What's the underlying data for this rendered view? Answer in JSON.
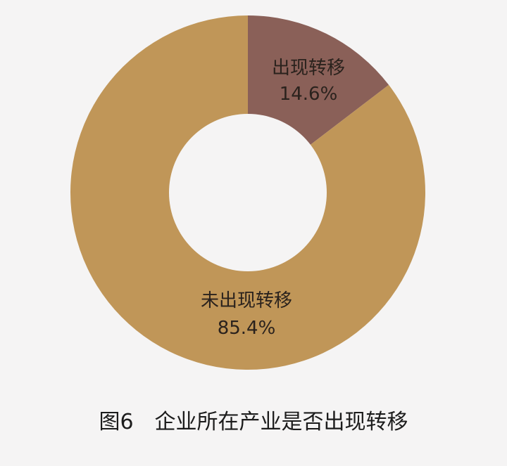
{
  "chart_data": {
    "type": "pie",
    "donut": true,
    "title": "图6　企业所在产业是否出现转移",
    "slices": [
      {
        "label": "出现转移",
        "value": 14.6,
        "value_text": "14.6%",
        "color": "#8a6058"
      },
      {
        "label": "未出现转移",
        "value": 85.4,
        "value_text": "85.4%",
        "color": "#c09658"
      }
    ],
    "start_angle": "12 o'clock",
    "direction": "clockwise",
    "hole_color": "#f5f4f4",
    "legend": "none"
  }
}
